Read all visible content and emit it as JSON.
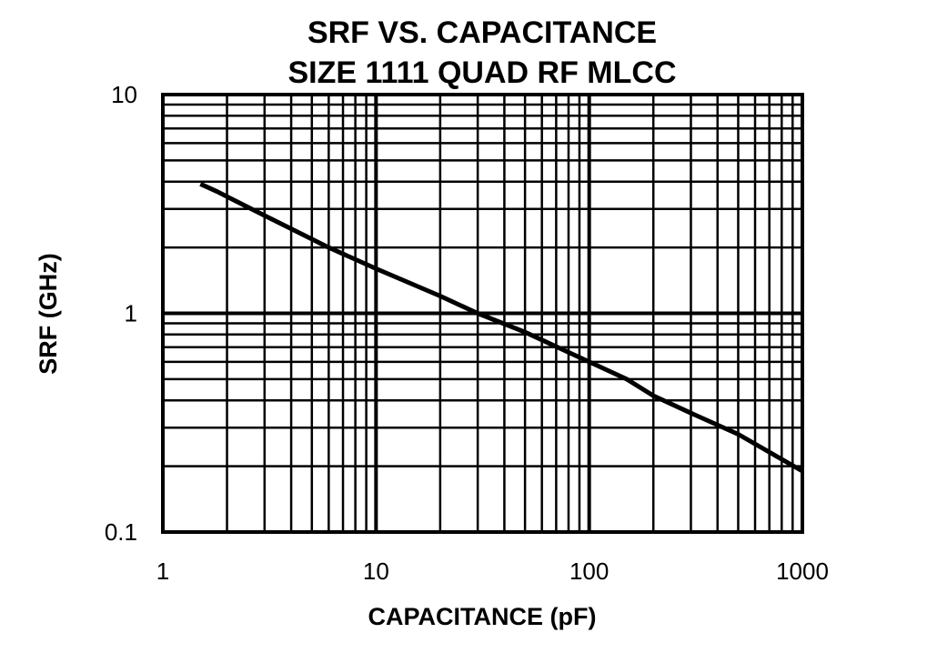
{
  "chart_data": {
    "type": "line",
    "title": "SRF VS. CAPACITANCE",
    "subtitle": "SIZE 1111 QUAD RF MLCC",
    "xlabel": "CAPACITANCE (pF)",
    "ylabel": "SRF (GHz)",
    "xscale": "log",
    "yscale": "log",
    "xlim": [
      1,
      1000
    ],
    "ylim": [
      0.1,
      10
    ],
    "xticks": [
      1,
      10,
      100,
      1000
    ],
    "xtick_labels": [
      "1",
      "10",
      "100",
      "1000"
    ],
    "yticks": [
      0.1,
      1,
      10
    ],
    "ytick_labels": [
      "0.1",
      "1",
      "10"
    ],
    "grid": true,
    "legend": "none",
    "line_color": "#000000",
    "series": [
      {
        "name": "",
        "x": [
          1.5,
          1.8,
          3,
          6,
          10,
          20,
          30,
          50,
          100,
          150,
          200,
          300,
          500,
          1000
        ],
        "y": [
          3.9,
          3.6,
          2.8,
          2.0,
          1.6,
          1.2,
          1.0,
          0.82,
          0.6,
          0.5,
          0.42,
          0.35,
          0.28,
          0.19
        ]
      }
    ]
  }
}
